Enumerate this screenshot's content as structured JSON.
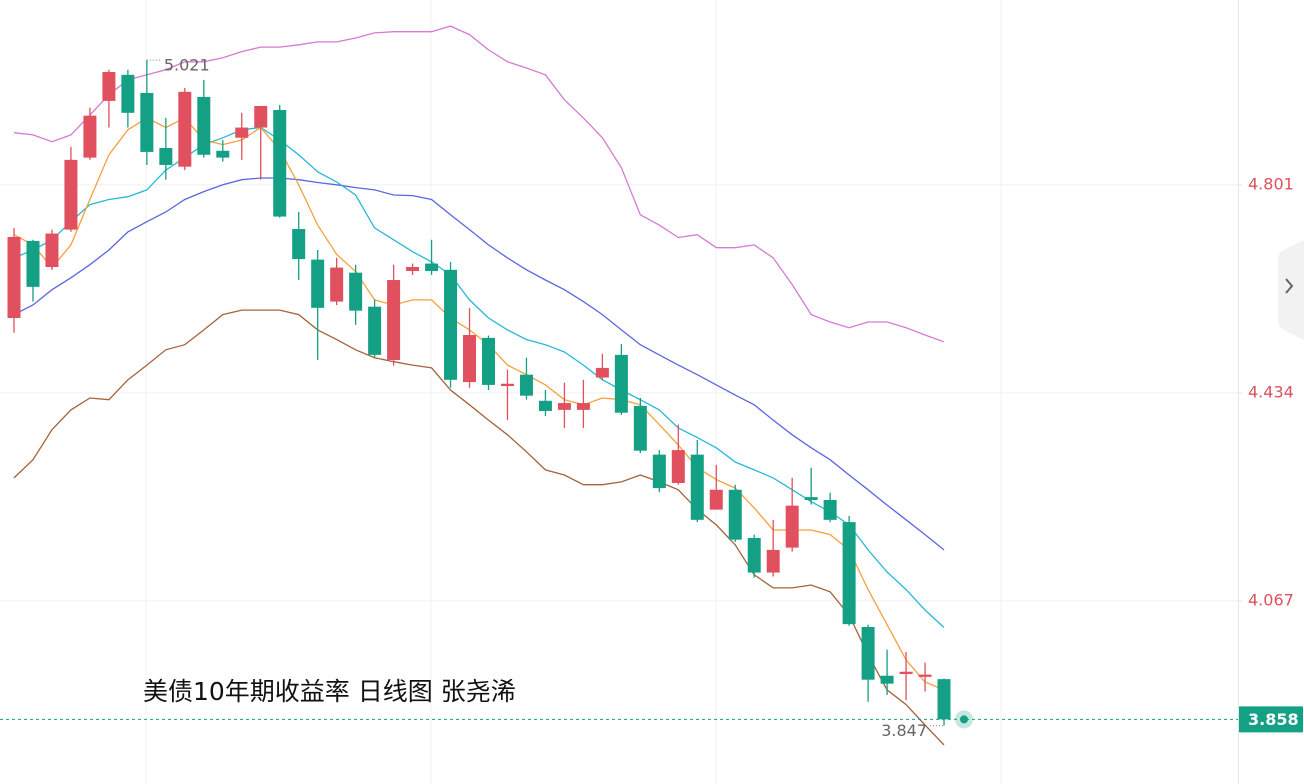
{
  "chart_data": {
    "type": "candlestick",
    "title": "美债10年期收益率 日线图  张尧浠",
    "ylim": [
      3.744,
      5.127
    ],
    "yticks": [
      4.067,
      4.434,
      4.801
    ],
    "grid": true,
    "up_color": "#e0505e",
    "down_color": "#14a085",
    "tick_color": "#e0505e",
    "last_price": 3.858,
    "high_label": 5.021,
    "low_label": 3.847,
    "open": [
      4.566,
      4.702,
      4.656,
      4.722,
      4.849,
      4.949,
      4.995,
      4.963,
      4.866,
      4.833,
      4.956,
      4.861,
      4.884,
      4.902,
      4.933,
      4.723,
      4.669,
      4.595,
      4.646,
      4.586,
      4.492,
      4.649,
      4.662,
      4.651,
      4.453,
      4.531,
      4.446,
      4.466,
      4.42,
      4.404,
      4.404,
      4.461,
      4.501,
      4.411,
      4.325,
      4.275,
      4.325,
      4.228,
      4.263,
      4.178,
      4.117,
      4.161,
      4.25,
      4.245,
      4.206,
      4.021,
      3.935,
      3.938,
      3.933,
      3.929
    ],
    "high": [
      4.725,
      4.704,
      4.722,
      4.868,
      4.937,
      5.004,
      5.004,
      5.021,
      4.919,
      4.972,
      4.986,
      4.88,
      4.928,
      4.94,
      4.942,
      4.753,
      4.686,
      4.672,
      4.66,
      4.598,
      4.66,
      4.662,
      4.704,
      4.665,
      4.584,
      4.535,
      4.475,
      4.496,
      4.439,
      4.452,
      4.457,
      4.503,
      4.52,
      4.425,
      4.333,
      4.378,
      4.351,
      4.307,
      4.272,
      4.184,
      4.21,
      4.284,
      4.302,
      4.258,
      4.217,
      4.025,
      3.981,
      3.977,
      3.958,
      3.93
    ],
    "low": [
      4.54,
      4.595,
      4.651,
      4.718,
      4.845,
      4.902,
      4.902,
      4.836,
      4.81,
      4.827,
      4.849,
      4.842,
      4.845,
      4.81,
      4.743,
      4.633,
      4.492,
      4.589,
      4.554,
      4.496,
      4.482,
      4.642,
      4.642,
      4.443,
      4.443,
      4.439,
      4.386,
      4.422,
      4.393,
      4.372,
      4.372,
      4.457,
      4.395,
      4.328,
      4.259,
      4.272,
      4.206,
      4.228,
      4.171,
      4.108,
      4.11,
      4.154,
      4.237,
      4.206,
      4.023,
      3.889,
      3.901,
      3.892,
      3.907,
      3.847
    ],
    "close": [
      4.709,
      4.621,
      4.715,
      4.845,
      4.923,
      5.0,
      4.928,
      4.859,
      4.836,
      4.965,
      4.854,
      4.849,
      4.902,
      4.94,
      4.745,
      4.67,
      4.584,
      4.655,
      4.579,
      4.501,
      4.633,
      4.656,
      4.649,
      4.457,
      4.536,
      4.448,
      4.45,
      4.429,
      4.402,
      4.416,
      4.416,
      4.478,
      4.399,
      4.332,
      4.266,
      4.333,
      4.21,
      4.263,
      4.175,
      4.117,
      4.157,
      4.235,
      4.245,
      4.21,
      4.026,
      3.928,
      3.921,
      3.942,
      3.937,
      3.858
    ],
    "lines": [
      {
        "color": "#d67ad3",
        "values": [
          4.893,
          4.889,
          4.877,
          4.889,
          4.924,
          4.96,
          4.986,
          4.995,
          5.004,
          5.018,
          5.018,
          5.025,
          5.036,
          5.044,
          5.044,
          5.048,
          5.053,
          5.053,
          5.06,
          5.069,
          5.071,
          5.071,
          5.071,
          5.081,
          5.066,
          5.039,
          5.018,
          5.007,
          4.995,
          4.951,
          4.919,
          4.884,
          4.831,
          4.748,
          4.73,
          4.708,
          4.713,
          4.69,
          4.69,
          4.695,
          4.672,
          4.625,
          4.572,
          4.559,
          4.549,
          4.559,
          4.559,
          4.549,
          4.536,
          4.524
        ]
      },
      {
        "color": "#a3633c",
        "values": [
          4.284,
          4.316,
          4.369,
          4.404,
          4.425,
          4.422,
          4.457,
          4.483,
          4.51,
          4.519,
          4.545,
          4.572,
          4.58,
          4.58,
          4.58,
          4.572,
          4.545,
          4.528,
          4.51,
          4.496,
          4.489,
          4.483,
          4.478,
          4.439,
          4.413,
          4.386,
          4.36,
          4.33,
          4.298,
          4.289,
          4.272,
          4.272,
          4.277,
          4.289,
          4.277,
          4.263,
          4.228,
          4.201,
          4.166,
          4.113,
          4.09,
          4.09,
          4.095,
          4.083,
          4.042,
          3.972,
          3.91,
          3.884,
          3.848,
          3.813
        ]
      },
      {
        "color": "#5b66e0",
        "values": [
          4.572,
          4.589,
          4.616,
          4.637,
          4.66,
          4.686,
          4.718,
          4.736,
          4.753,
          4.775,
          4.789,
          4.801,
          4.81,
          4.813,
          4.813,
          4.81,
          4.805,
          4.801,
          4.796,
          4.792,
          4.783,
          4.782,
          4.775,
          4.748,
          4.722,
          4.695,
          4.672,
          4.651,
          4.633,
          4.616,
          4.595,
          4.572,
          4.545,
          4.519,
          4.501,
          4.483,
          4.466,
          4.448,
          4.43,
          4.413,
          4.386,
          4.36,
          4.337,
          4.316,
          4.289,
          4.263,
          4.236,
          4.21,
          4.184,
          4.157
        ]
      },
      {
        "color": "#26b9d6",
        "values": [
          4.672,
          4.686,
          4.704,
          4.736,
          4.766,
          4.775,
          4.78,
          4.792,
          4.827,
          4.849,
          4.872,
          4.884,
          4.898,
          4.902,
          4.88,
          4.854,
          4.824,
          4.806,
          4.783,
          4.725,
          4.704,
          4.683,
          4.665,
          4.642,
          4.598,
          4.566,
          4.545,
          4.528,
          4.519,
          4.506,
          4.483,
          4.457,
          4.439,
          4.422,
          4.404,
          4.372,
          4.355,
          4.337,
          4.312,
          4.298,
          4.284,
          4.263,
          4.242,
          4.224,
          4.201,
          4.157,
          4.118,
          4.087,
          4.051,
          4.02
        ]
      },
      {
        "color": "#f5a03c",
        "values": [
          4.713,
          4.695,
          4.655,
          4.695,
          4.775,
          4.854,
          4.898,
          4.919,
          4.902,
          4.919,
          4.88,
          4.872,
          4.88,
          4.902,
          4.863,
          4.801,
          4.73,
          4.678,
          4.648,
          4.598,
          4.589,
          4.598,
          4.598,
          4.566,
          4.545,
          4.519,
          4.483,
          4.466,
          4.448,
          4.422,
          4.413,
          4.425,
          4.422,
          4.413,
          4.378,
          4.342,
          4.302,
          4.281,
          4.266,
          4.231,
          4.192,
          4.192,
          4.192,
          4.184,
          4.157,
          4.087,
          4.025,
          3.963,
          3.924,
          3.91
        ]
      }
    ]
  }
}
